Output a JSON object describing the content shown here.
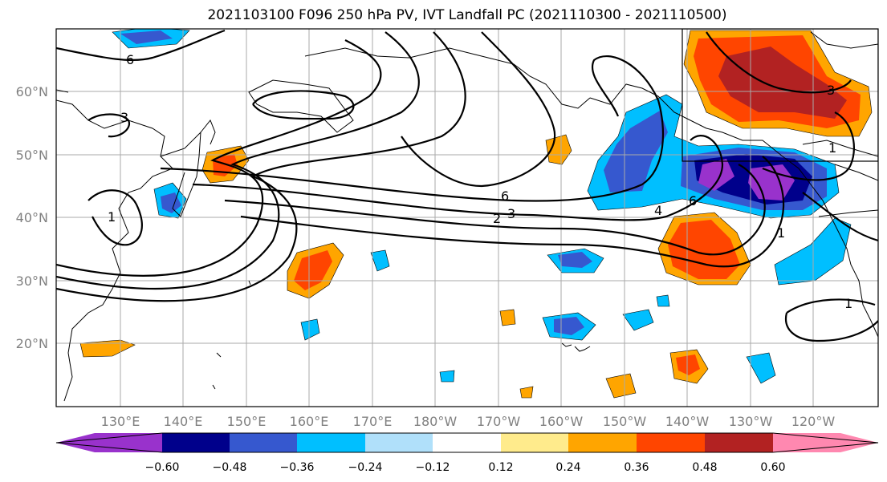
{
  "title": "2021103100 F096 250 hPa PV, IVT Landfall PC (2021110300 - 2021110500)",
  "map": {
    "lat_labels": [
      "60°N",
      "50°N",
      "40°N",
      "30°N",
      "20°N"
    ],
    "lon_labels": [
      "130°E",
      "140°E",
      "150°E",
      "160°E",
      "170°E",
      "180°W",
      "170°W",
      "160°W",
      "150°W",
      "140°W",
      "130°W",
      "120°W"
    ],
    "contour_labels": [
      "6",
      "3",
      "1",
      "6",
      "2",
      "3",
      "4",
      "6",
      "1",
      "1",
      "3",
      "1"
    ],
    "extent": {
      "lon_min": 120,
      "lon_max": 250.5,
      "lat_min": 10,
      "lat_max": 70
    }
  },
  "colorbar": {
    "tick_labels": [
      "−0.60",
      "−0.48",
      "−0.36",
      "−0.24",
      "−0.12",
      "0.12",
      "0.24",
      "0.36",
      "0.48",
      "0.60"
    ],
    "colors": [
      "#9932cc",
      "#00008b",
      "#3658cf",
      "#00bfff",
      "#b0e0fa",
      "#ffffff",
      "#ffeb8c",
      "#ffa500",
      "#ff4500",
      "#b22222",
      "#ff88b0"
    ],
    "extend": "both"
  },
  "colors": {
    "land_outline": "#000000",
    "grid": "#aaaaaa",
    "axis_label": "#808080"
  }
}
